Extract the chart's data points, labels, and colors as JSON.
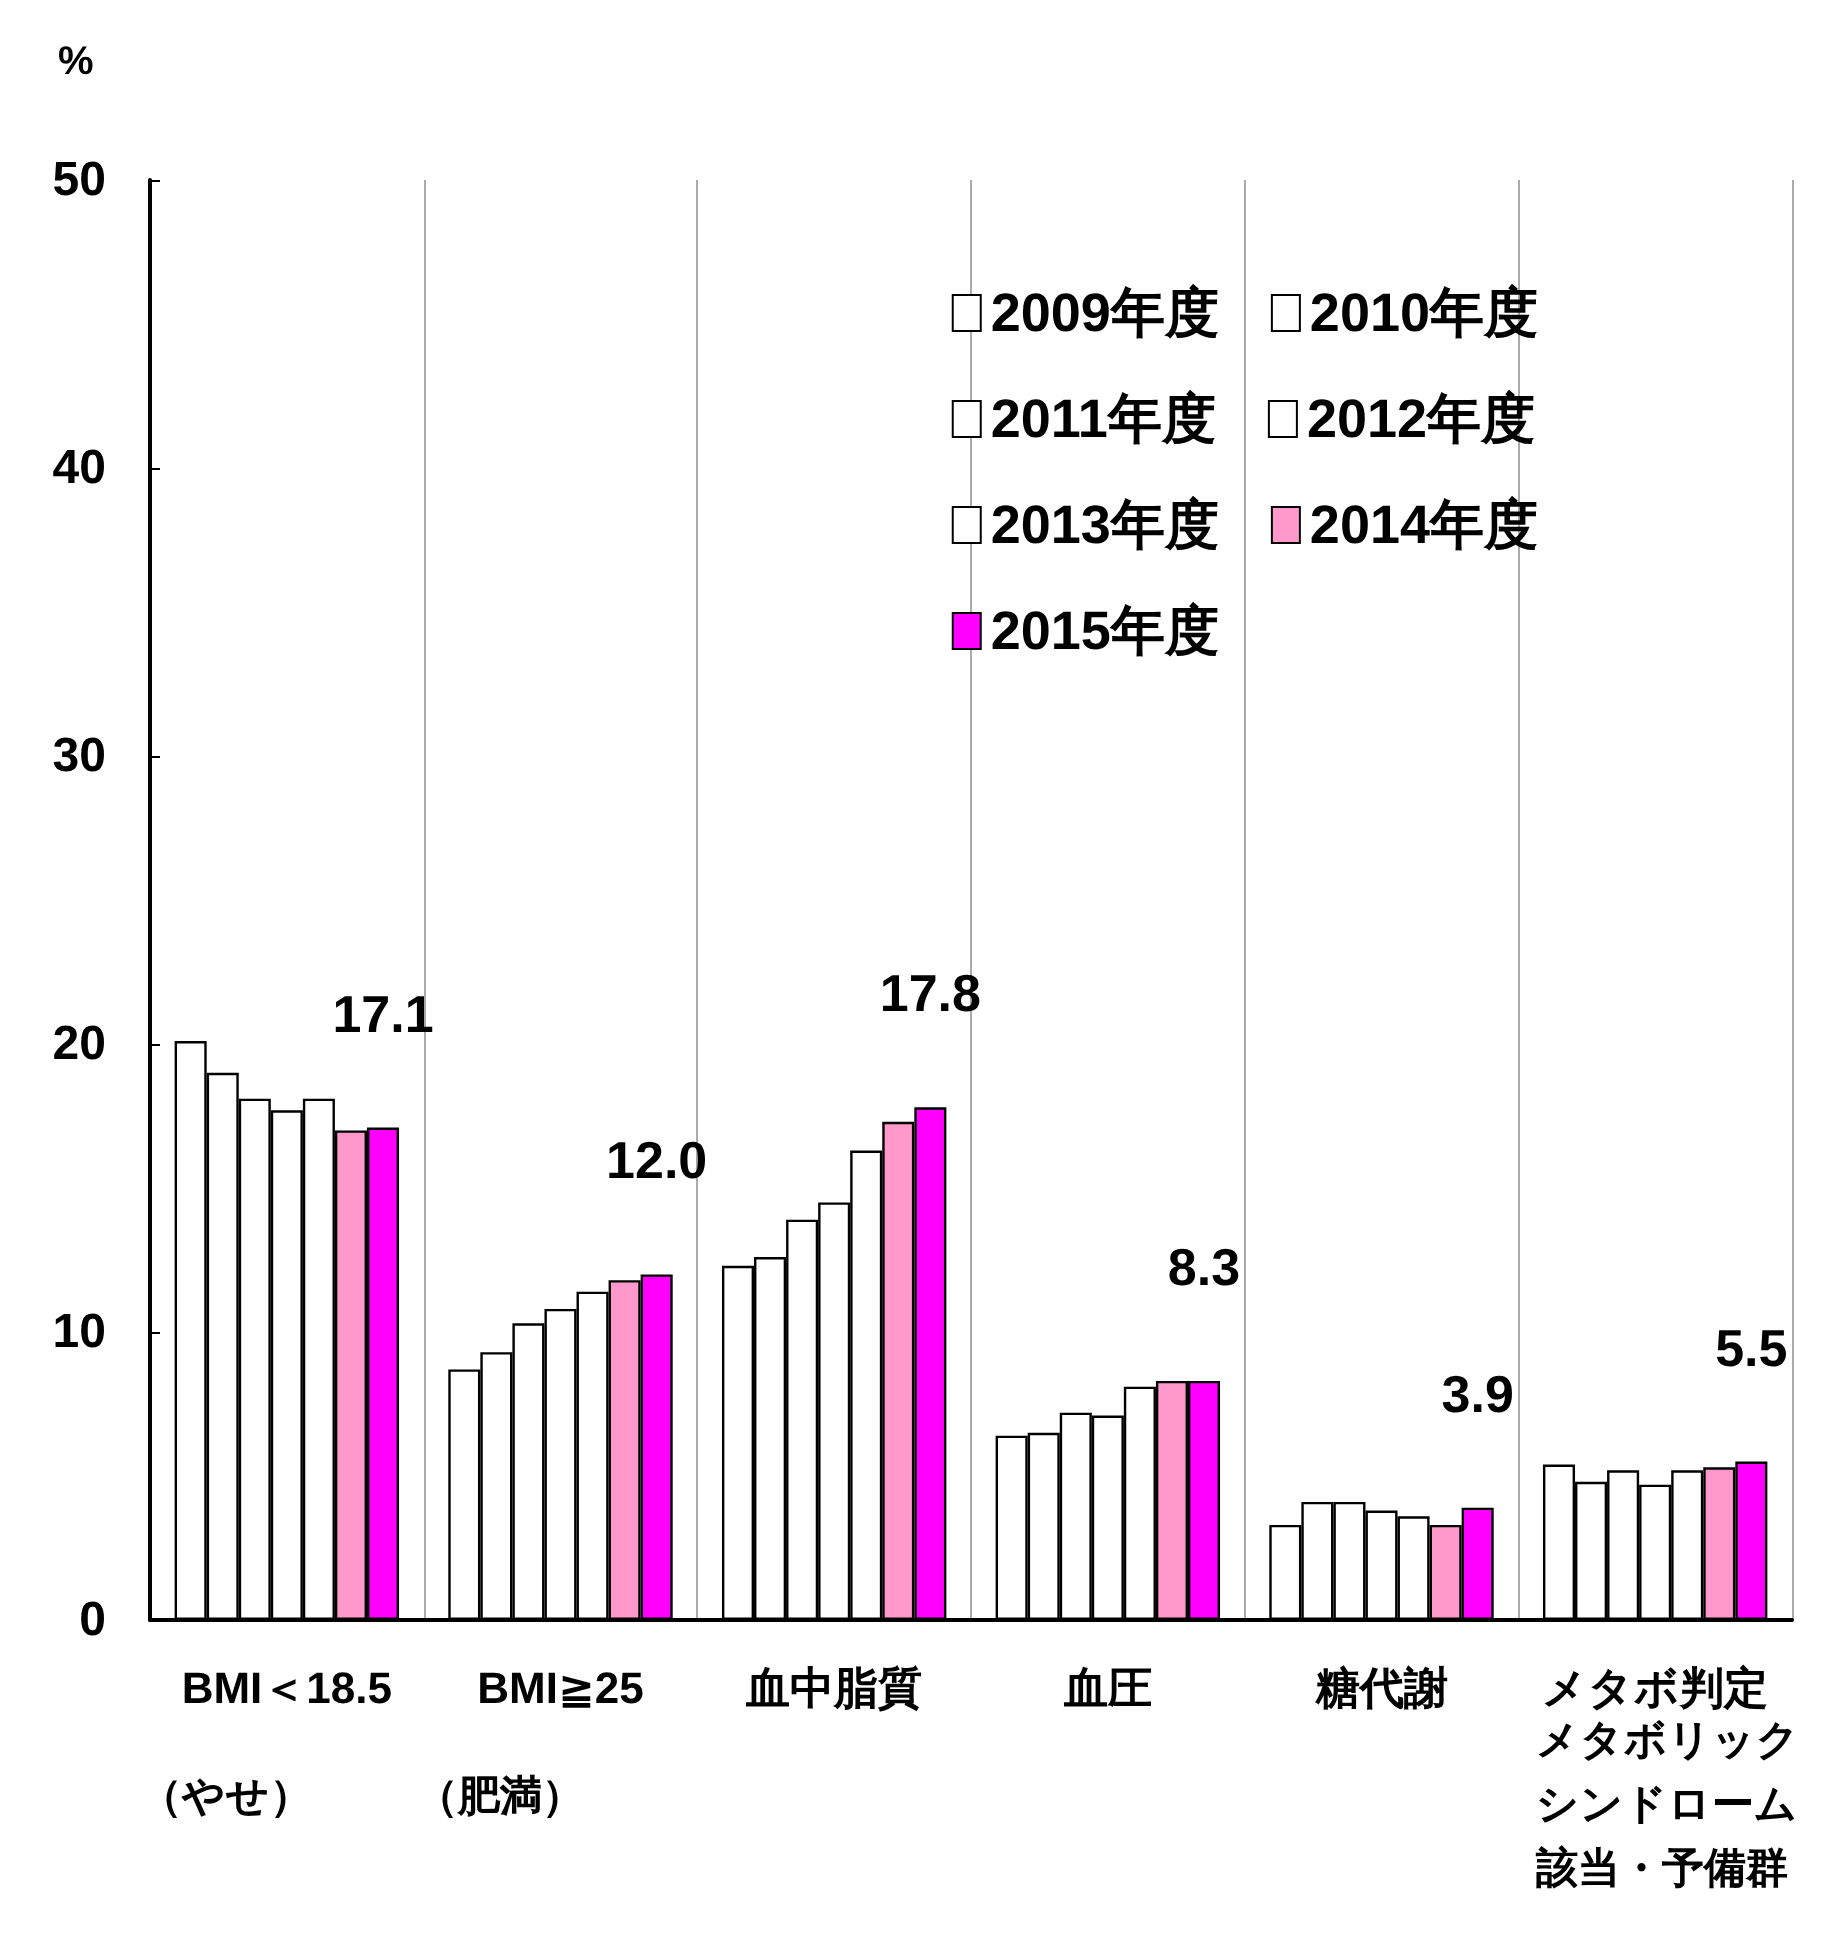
{
  "chart_data": {
    "type": "bar",
    "ylabel": "%",
    "categories": [
      "BMI＜18.5",
      "BMI≧25",
      "血中脂質",
      "血圧",
      "糖代謝",
      "メタボ判定"
    ],
    "annotations": [
      "（やせ）",
      "（肥満）",
      "メタボリック",
      "シンドローム",
      "該当・予備群"
    ],
    "series": [
      {
        "name": "2009年度",
        "color": "#ffffff",
        "values": [
          20.1,
          8.7,
          12.3,
          6.4,
          3.3,
          5.4
        ]
      },
      {
        "name": "2010年度",
        "color": "#ffffff",
        "values": [
          19.0,
          9.3,
          12.6,
          6.5,
          4.1,
          4.8
        ]
      },
      {
        "name": "2011年度",
        "color": "#ffffff",
        "values": [
          18.1,
          10.3,
          13.9,
          7.2,
          4.1,
          5.2
        ]
      },
      {
        "name": "2012年度",
        "color": "#ffffff",
        "values": [
          17.7,
          10.8,
          14.5,
          7.1,
          3.8,
          4.7
        ]
      },
      {
        "name": "2013年度",
        "color": "#ffffff",
        "values": [
          18.1,
          11.4,
          16.3,
          8.1,
          3.6,
          5.2
        ]
      },
      {
        "name": "2014年度",
        "color": "#ff99cc",
        "values": [
          17.0,
          11.8,
          17.3,
          8.3,
          3.3,
          5.3
        ]
      },
      {
        "name": "2015年度",
        "color": "#ff00ff",
        "values": [
          17.1,
          12.0,
          17.8,
          8.3,
          3.9,
          5.5
        ],
        "value_labels": [
          "17.1",
          "12.0",
          "17.8",
          "8.3",
          "3.9",
          "5.5"
        ]
      }
    ],
    "ylim": [
      0,
      50
    ],
    "yticks": [
      0,
      10,
      20,
      30,
      40,
      50
    ],
    "grid": "x",
    "legend": "top right"
  }
}
